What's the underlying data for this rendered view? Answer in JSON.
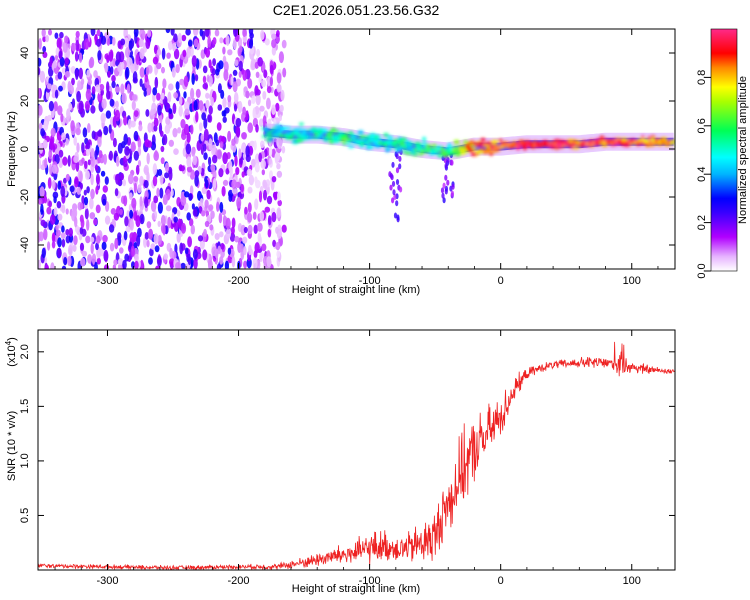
{
  "figure": {
    "title": "C2E1.2026.051.23.56.G32"
  },
  "chart_data": [
    {
      "type": "heatmap",
      "title": "C2E1.2026.051.23.56.G32",
      "xlabel": "Height of straight line (km)",
      "ylabel": "Frequency (Hz)",
      "xlim": [
        -353,
        133
      ],
      "ylim": [
        -50,
        50
      ],
      "x_ticks": [
        -300,
        -200,
        -100,
        0,
        100
      ],
      "x_tick_labels": [
        "-300",
        "-200",
        "-100",
        "0",
        "100"
      ],
      "y_ticks": [
        -40,
        -20,
        0,
        20,
        40
      ],
      "y_tick_labels": [
        "-40",
        "-20",
        "0",
        "20",
        "40"
      ],
      "colorbar": {
        "label": "Normalized spectral amplitude",
        "range": [
          0,
          1
        ],
        "ticks": [
          0.0,
          0.2,
          0.4,
          0.6,
          0.8
        ],
        "tick_labels": [
          "0.0",
          "0.2",
          "0.4",
          "0.6",
          "0.8"
        ],
        "colors": [
          "#ffffff",
          "#cc00ff",
          "#0000ff",
          "#00ffff",
          "#00ff00",
          "#ffff00",
          "#ff0000",
          "#ff00aa"
        ]
      },
      "ridge": {
        "x": [
          -180,
          -160,
          -140,
          -120,
          -100,
          -80,
          -60,
          -40,
          -20,
          0,
          20,
          40,
          60,
          80,
          100,
          120,
          133
        ],
        "y": [
          7,
          6,
          6,
          5,
          3,
          2,
          0,
          -1,
          1,
          1,
          2,
          2,
          2,
          3,
          3,
          3,
          3
        ],
        "amplitude": [
          0.45,
          0.5,
          0.5,
          0.55,
          0.5,
          0.5,
          0.55,
          0.55,
          0.85,
          0.9,
          0.95,
          0.95,
          0.9,
          0.9,
          0.9,
          0.85,
          0.85
        ]
      },
      "noise_region": {
        "x_range": [
          -353,
          -165
        ],
        "y_range": [
          -50,
          50
        ],
        "amplitude": [
          0.1,
          0.3
        ]
      }
    },
    {
      "type": "line",
      "xlabel": "Height of straight line (km)",
      "ylabel": "SNR (10 * v/v)",
      "y_scale_label": "(x10",
      "y_scale_exponent": "4",
      "y_scale_suffix": ")",
      "xlim": [
        -353,
        133
      ],
      "ylim": [
        0,
        2.2
      ],
      "x_ticks": [
        -300,
        -200,
        -100,
        0,
        100
      ],
      "x_tick_labels": [
        "-300",
        "-200",
        "-100",
        "0",
        "100"
      ],
      "y_ticks": [
        0.5,
        1.0,
        1.5,
        2.0
      ],
      "y_tick_labels": [
        "0.5",
        "1.0",
        "1.5",
        "2.0"
      ],
      "line_color": "#ee2222",
      "series": [
        {
          "name": "SNR",
          "x": [
            -353,
            -300,
            -250,
            -200,
            -170,
            -150,
            -130,
            -110,
            -100,
            -90,
            -80,
            -70,
            -60,
            -50,
            -45,
            -40,
            -30,
            -20,
            -10,
            0,
            10,
            20,
            30,
            40,
            50,
            60,
            70,
            80,
            90,
            100,
            110,
            120,
            133
          ],
          "y": [
            0.04,
            0.03,
            0.02,
            0.03,
            0.03,
            0.07,
            0.12,
            0.16,
            0.2,
            0.22,
            0.2,
            0.2,
            0.25,
            0.3,
            0.5,
            0.6,
            0.9,
            1.1,
            1.25,
            1.4,
            1.65,
            1.8,
            1.85,
            1.88,
            1.89,
            1.9,
            1.9,
            1.9,
            1.88,
            1.86,
            1.84,
            1.83,
            1.82
          ],
          "noise": [
            0.02,
            0.02,
            0.02,
            0.02,
            0.03,
            0.05,
            0.08,
            0.12,
            0.15,
            0.15,
            0.12,
            0.15,
            0.2,
            0.25,
            0.25,
            0.3,
            0.35,
            0.3,
            0.25,
            0.2,
            0.12,
            0.05,
            0.04,
            0.04,
            0.04,
            0.05,
            0.06,
            0.06,
            0.12,
            0.06,
            0.05,
            0.03,
            0.03
          ]
        }
      ]
    }
  ]
}
